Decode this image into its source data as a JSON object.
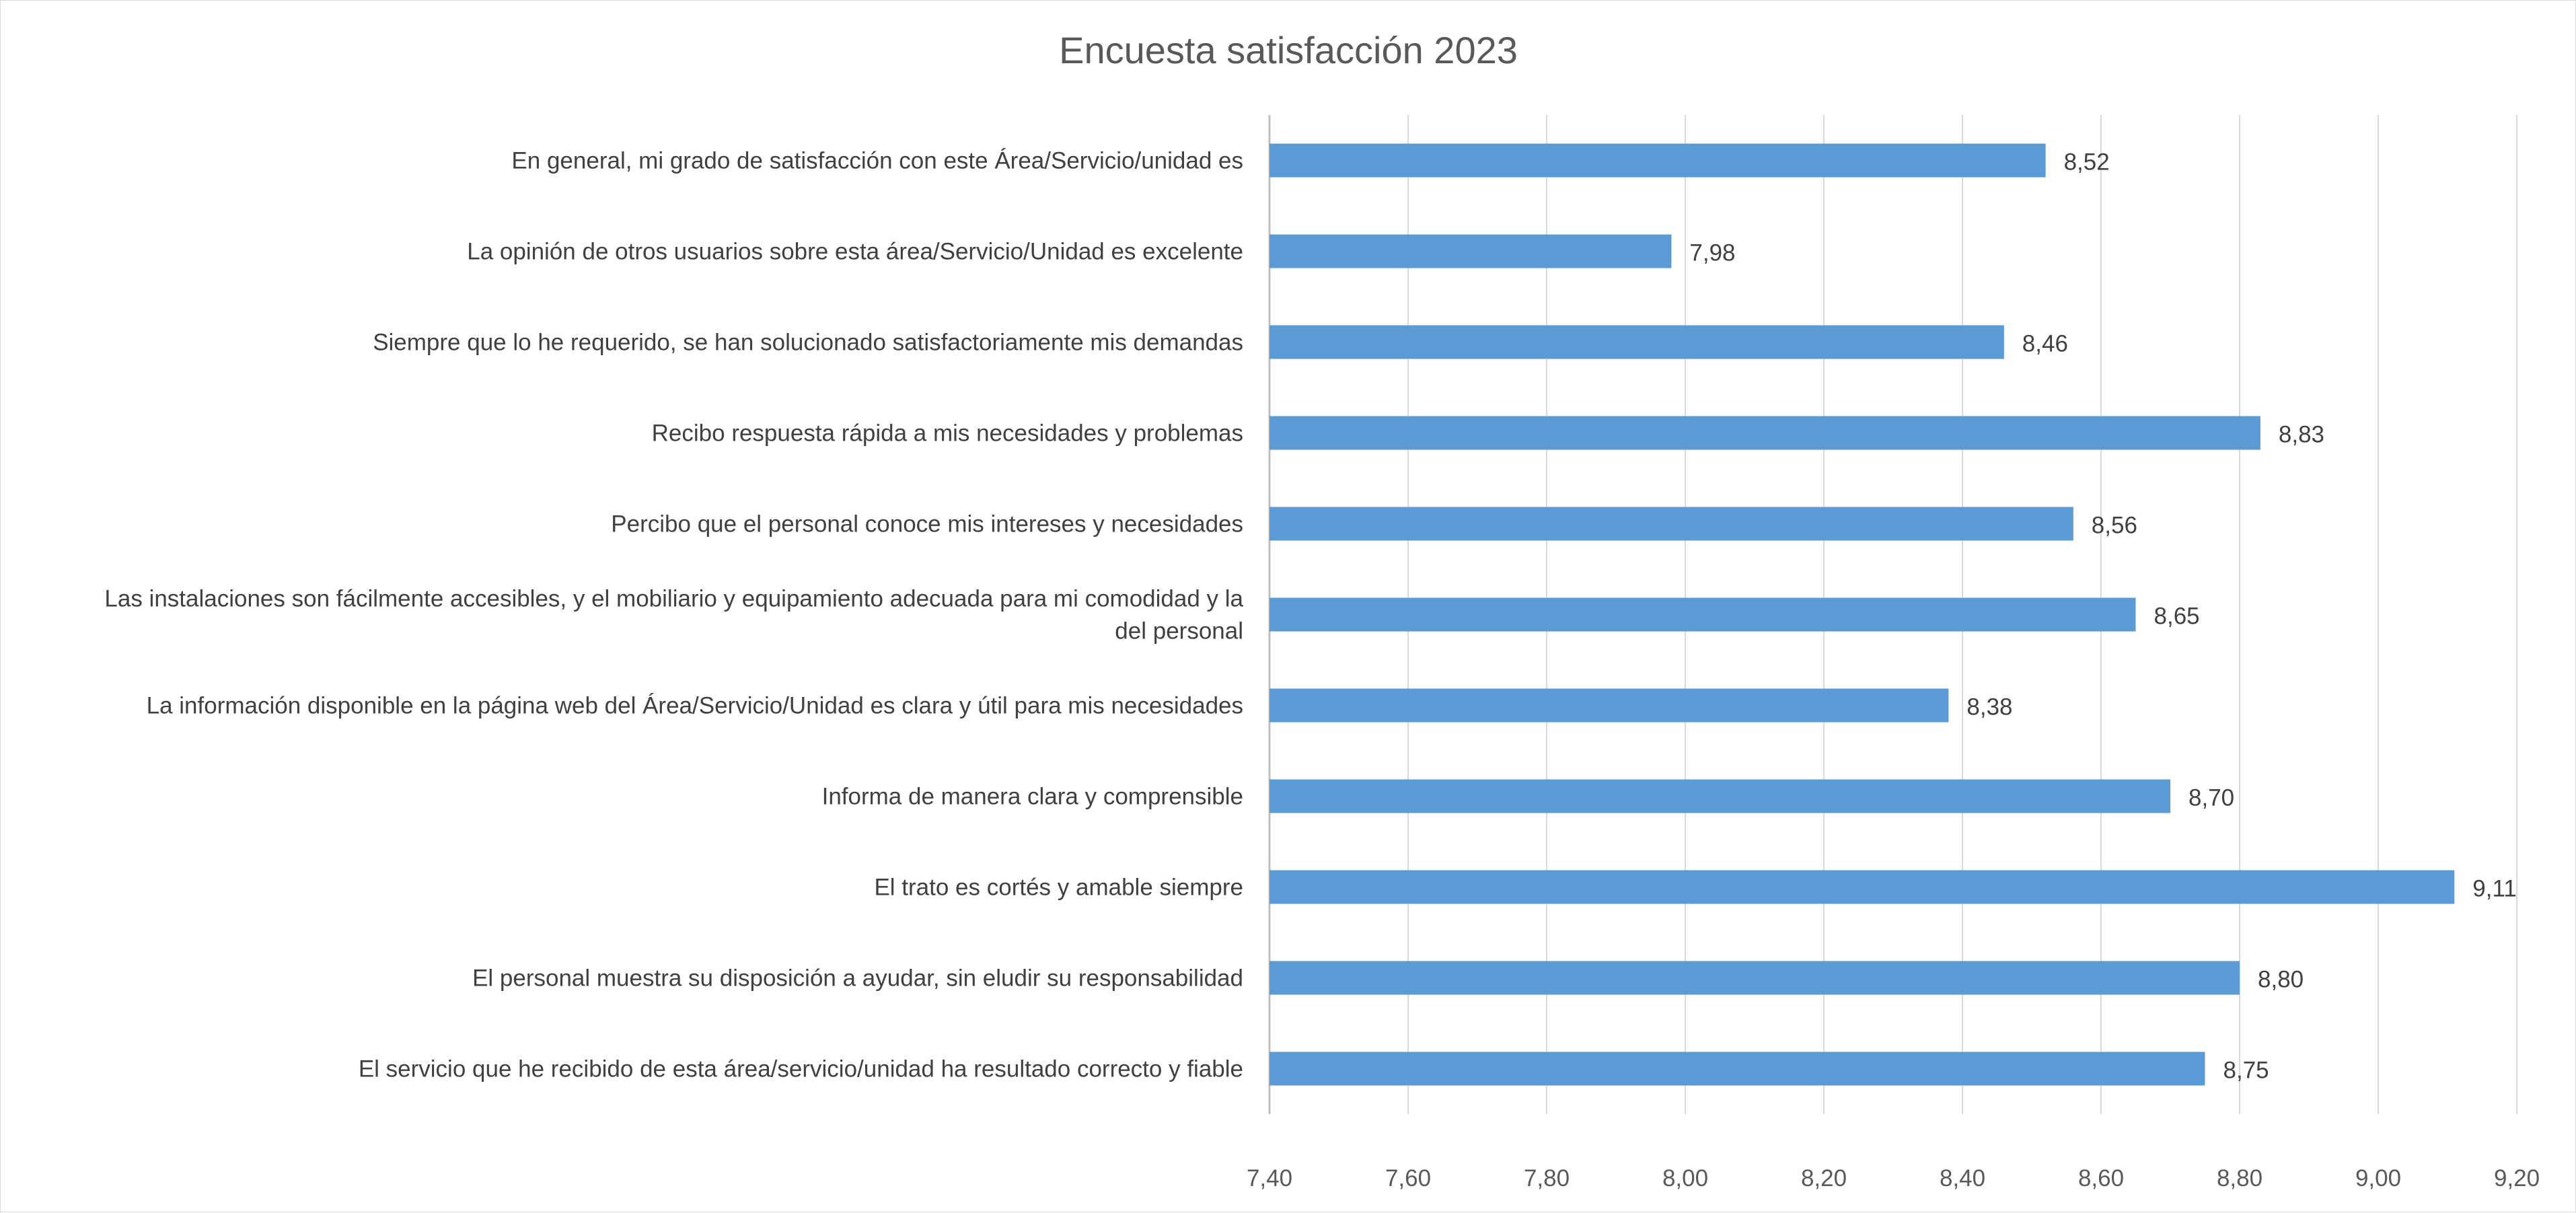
{
  "chart_data": {
    "type": "bar",
    "orientation": "horizontal",
    "title": "Encuesta satisfacción 2023",
    "categories": [
      "En general, mi grado de satisfacción con este Área/Servicio/unidad es",
      "La opinión de otros usuarios sobre esta área/Servicio/Unidad es excelente",
      "Siempre que lo he requerido, se han solucionado satisfactoriamente mis demandas",
      "Recibo respuesta rápida a mis necesidades y problemas",
      "Percibo que el personal conoce mis intereses y necesidades",
      "Las instalaciones son fácilmente accesibles, y el mobiliario y equipamiento adecuada para mi comodidad y la del personal",
      "La información disponible en la página web del Área/Servicio/Unidad es clara y útil para mis necesidades",
      "Informa de manera clara y comprensible",
      "El trato es cortés y amable siempre",
      "El personal muestra su disposición a ayudar, sin eludir su responsabilidad",
      "El servicio que he recibido de esta área/servicio/unidad ha resultado correcto y fiable"
    ],
    "category_label_lines": [
      [
        "En general, mi grado de satisfacción con este Área/Servicio/unidad es"
      ],
      [
        "La opinión de otros usuarios sobre esta área/Servicio/Unidad es excelente"
      ],
      [
        "Siempre que lo he requerido, se han solucionado satisfactoriamente mis demandas"
      ],
      [
        "Recibo respuesta rápida a mis necesidades y problemas"
      ],
      [
        "Percibo que el personal conoce mis intereses y necesidades"
      ],
      [
        "Las instalaciones son fácilmente accesibles, y el mobiliario y equipamiento adecuada para mi comodidad y la",
        "del personal"
      ],
      [
        "La información disponible en la página web del Área/Servicio/Unidad es clara y útil para mis necesidades"
      ],
      [
        "Informa de manera clara y comprensible"
      ],
      [
        "El trato es cortés y amable siempre"
      ],
      [
        "El personal muestra su disposición a ayudar, sin eludir su responsabilidad"
      ],
      [
        "El servicio que he recibido de esta área/servicio/unidad ha resultado correcto y fiable"
      ]
    ],
    "values": [
      8.52,
      7.98,
      8.46,
      8.83,
      8.56,
      8.65,
      8.38,
      8.7,
      9.11,
      8.8,
      8.75
    ],
    "value_labels": [
      "8,52",
      "7,98",
      "8,46",
      "8,83",
      "8,56",
      "8,65",
      "8,38",
      "8,70",
      "9,11",
      "8,80",
      "8,75"
    ],
    "x_ticks": [
      7.4,
      7.6,
      7.8,
      8.0,
      8.2,
      8.4,
      8.6,
      8.8,
      9.0,
      9.2
    ],
    "x_tick_labels": [
      "7,40",
      "7,60",
      "7,80",
      "8,00",
      "8,20",
      "8,40",
      "8,60",
      "8,80",
      "9,00",
      "9,20"
    ],
    "xlim": [
      7.4,
      9.2
    ],
    "xlabel": "",
    "ylabel": "",
    "grid": "vertical",
    "legend": "none",
    "colors": {
      "bar": "#5b9bd5",
      "grid": "#d9d9d9",
      "axis": "#bfbfbf",
      "text": "#404040"
    }
  }
}
